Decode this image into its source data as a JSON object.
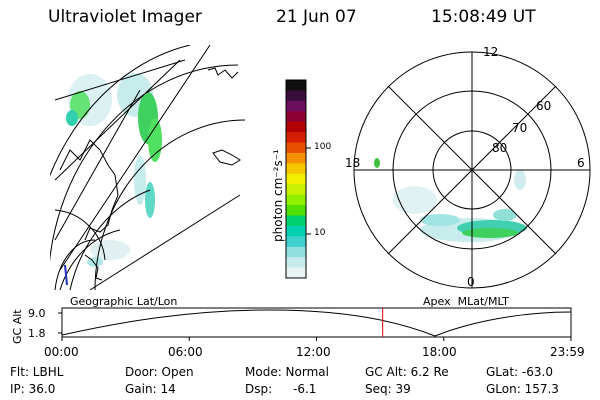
{
  "header": {
    "title": "Ultraviolet Imager",
    "date": "21 Jun 07",
    "time": "15:08:49 UT"
  },
  "colorbar": {
    "unit_label": "photon cm⁻²s⁻¹",
    "ticks": [
      "100",
      "10"
    ],
    "colors": [
      "#101010",
      "#3a0e3c",
      "#6b0e5e",
      "#8a0030",
      "#b30000",
      "#d42000",
      "#e85000",
      "#f59000",
      "#f5c800",
      "#f0f000",
      "#c8f000",
      "#90f000",
      "#50e000",
      "#00d070",
      "#00d0b0",
      "#40d0d0",
      "#90e0e0",
      "#c8ecec",
      "#e8f4f4"
    ]
  },
  "panels": {
    "geo_label": "Geographic Lat/Lon",
    "apex_label": "Apex  MLat/MLT"
  },
  "polar": {
    "mlt_labels": [
      "12",
      "18",
      "6",
      "0"
    ],
    "lat_labels": [
      "60",
      "70",
      "80"
    ]
  },
  "altitude_plot": {
    "ylabel": "GC Alt",
    "y_ticks": [
      "9.0",
      "1.8"
    ],
    "x_ticks": [
      "00:00",
      "06:00",
      "12:00",
      "18:00",
      "23:59"
    ],
    "current_time_fraction": 0.63,
    "marker_color": "#e00000"
  },
  "info": {
    "row1": {
      "flt": "Flt: LBHL",
      "door": "Door: Open",
      "mode": "Mode: Normal",
      "gcalt": "GC Alt: 6.2 Re",
      "glat": "GLat: -63.0"
    },
    "row2": {
      "ip": "IP: 36.0",
      "gain": "Gain: 14",
      "dsp_label": "Dsp:",
      "dsp_value": "-6.1",
      "seq": "Seq: 39",
      "glon": "GLon: 157.3"
    }
  }
}
